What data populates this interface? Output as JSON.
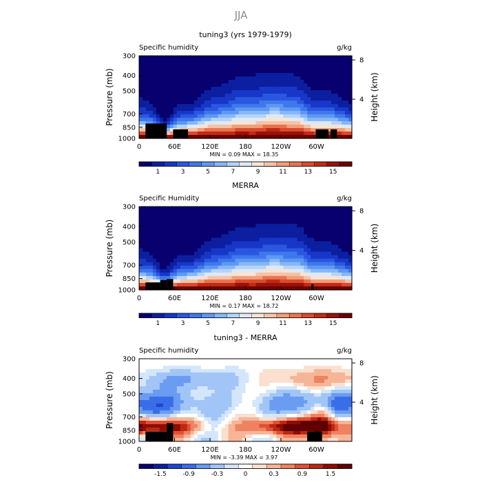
{
  "figure": {
    "title": "JJA"
  },
  "colors": {
    "abs": [
      "#08006e",
      "#0c1fa0",
      "#1737c8",
      "#2a57e0",
      "#3f78ec",
      "#5e98f3",
      "#86b7f6",
      "#b4d3f8",
      "#dde9f6",
      "#f7e4d6",
      "#f6c3a7",
      "#f29e79",
      "#e8744f",
      "#d84b2c",
      "#c02a14",
      "#99110a",
      "#6b0300"
    ],
    "diff": [
      "#08006e",
      "#0c1fa0",
      "#1d46d4",
      "#3a6ee8",
      "#6a9cf2",
      "#a2c5f7",
      "#d3e6fb",
      "#ffffff",
      "#fbe0cf",
      "#f6b596",
      "#ee8261",
      "#de5134",
      "#bd2812",
      "#8f0c05",
      "#600000"
    ]
  },
  "chart_data": [
    {
      "type": "heatmap",
      "title": "tuning3 (yrs 1979-1979)",
      "left_label": "Specific humidity",
      "units": "g/kg",
      "ylabel": "Pressure (mb)",
      "ylabel_right": "Height (km)",
      "y_ticks": [
        "300",
        "400",
        "500",
        "700",
        "850",
        "1000"
      ],
      "y_right_ticks": [
        "8",
        "4"
      ],
      "x_ticks": [
        "0",
        "60E",
        "120E",
        "180",
        "120W",
        "60W"
      ],
      "stats": "MIN =    0.09   MAX =   18.35",
      "colorbar_labels": [
        "1",
        "3",
        "5",
        "7",
        "9",
        "11",
        "13",
        "15"
      ],
      "colorbar_bins": 17,
      "field": "abs",
      "tropo_extent": [
        0.8,
        0.92
      ],
      "peaks": [
        [
          0.12,
          0.22
        ],
        [
          0.8,
          0.18
        ]
      ],
      "land": [
        [
          0.03,
          0.13,
          0.82
        ],
        [
          0.16,
          0.23,
          0.89
        ],
        [
          0.83,
          0.89,
          0.89
        ],
        [
          0.9,
          0.93,
          0.89
        ]
      ]
    },
    {
      "type": "heatmap",
      "title": "MERRA",
      "left_label": "Specific Humidity",
      "units": "g/kg",
      "ylabel": "Pressure (mb)",
      "ylabel_right": "Height (km)",
      "y_ticks": [
        "300",
        "400",
        "500",
        "700",
        "850",
        "1000"
      ],
      "y_right_ticks": [
        "8",
        "4"
      ],
      "x_ticks": [
        "0",
        "60E",
        "120E",
        "180",
        "120W",
        "60W"
      ],
      "stats": "MIN =    0.17   MAX =   18.72",
      "colorbar_labels": [
        "1",
        "3",
        "5",
        "7",
        "9",
        "11",
        "13",
        "15"
      ],
      "colorbar_bins": 17,
      "field": "abs",
      "tropo_extent": [
        0.78,
        0.88
      ],
      "peaks": [
        [
          0.12,
          0.18
        ],
        [
          0.8,
          0.15
        ]
      ],
      "land": [
        [
          0.03,
          0.1,
          0.91
        ],
        [
          0.1,
          0.13,
          0.88
        ],
        [
          0.13,
          0.16,
          0.87
        ],
        [
          0.81,
          0.82,
          0.93
        ]
      ]
    },
    {
      "type": "heatmap",
      "title": "tuning3 - MERRA",
      "left_label": "Specific humidity",
      "units": "g/kg",
      "ylabel": "Pressure (mb)",
      "ylabel_right": "Height (km)",
      "y_ticks": [
        "300",
        "400",
        "500",
        "700",
        "850",
        "1000"
      ],
      "y_right_ticks": [
        "8",
        "4"
      ],
      "x_ticks": [
        "0",
        "60E",
        "120E",
        "180",
        "120W",
        "60W"
      ],
      "stats": "MIN =   -3.39   MAX =    3.97",
      "colorbar_labels": [
        "-1.5",
        "-0.9",
        "-0.3",
        "0",
        "0.3",
        "0.9",
        "1.5"
      ],
      "colorbar_bins": 15,
      "field": "diff",
      "land": [
        [
          0.03,
          0.13,
          0.88
        ],
        [
          0.13,
          0.16,
          0.78
        ],
        [
          0.79,
          0.86,
          0.88
        ]
      ]
    }
  ]
}
